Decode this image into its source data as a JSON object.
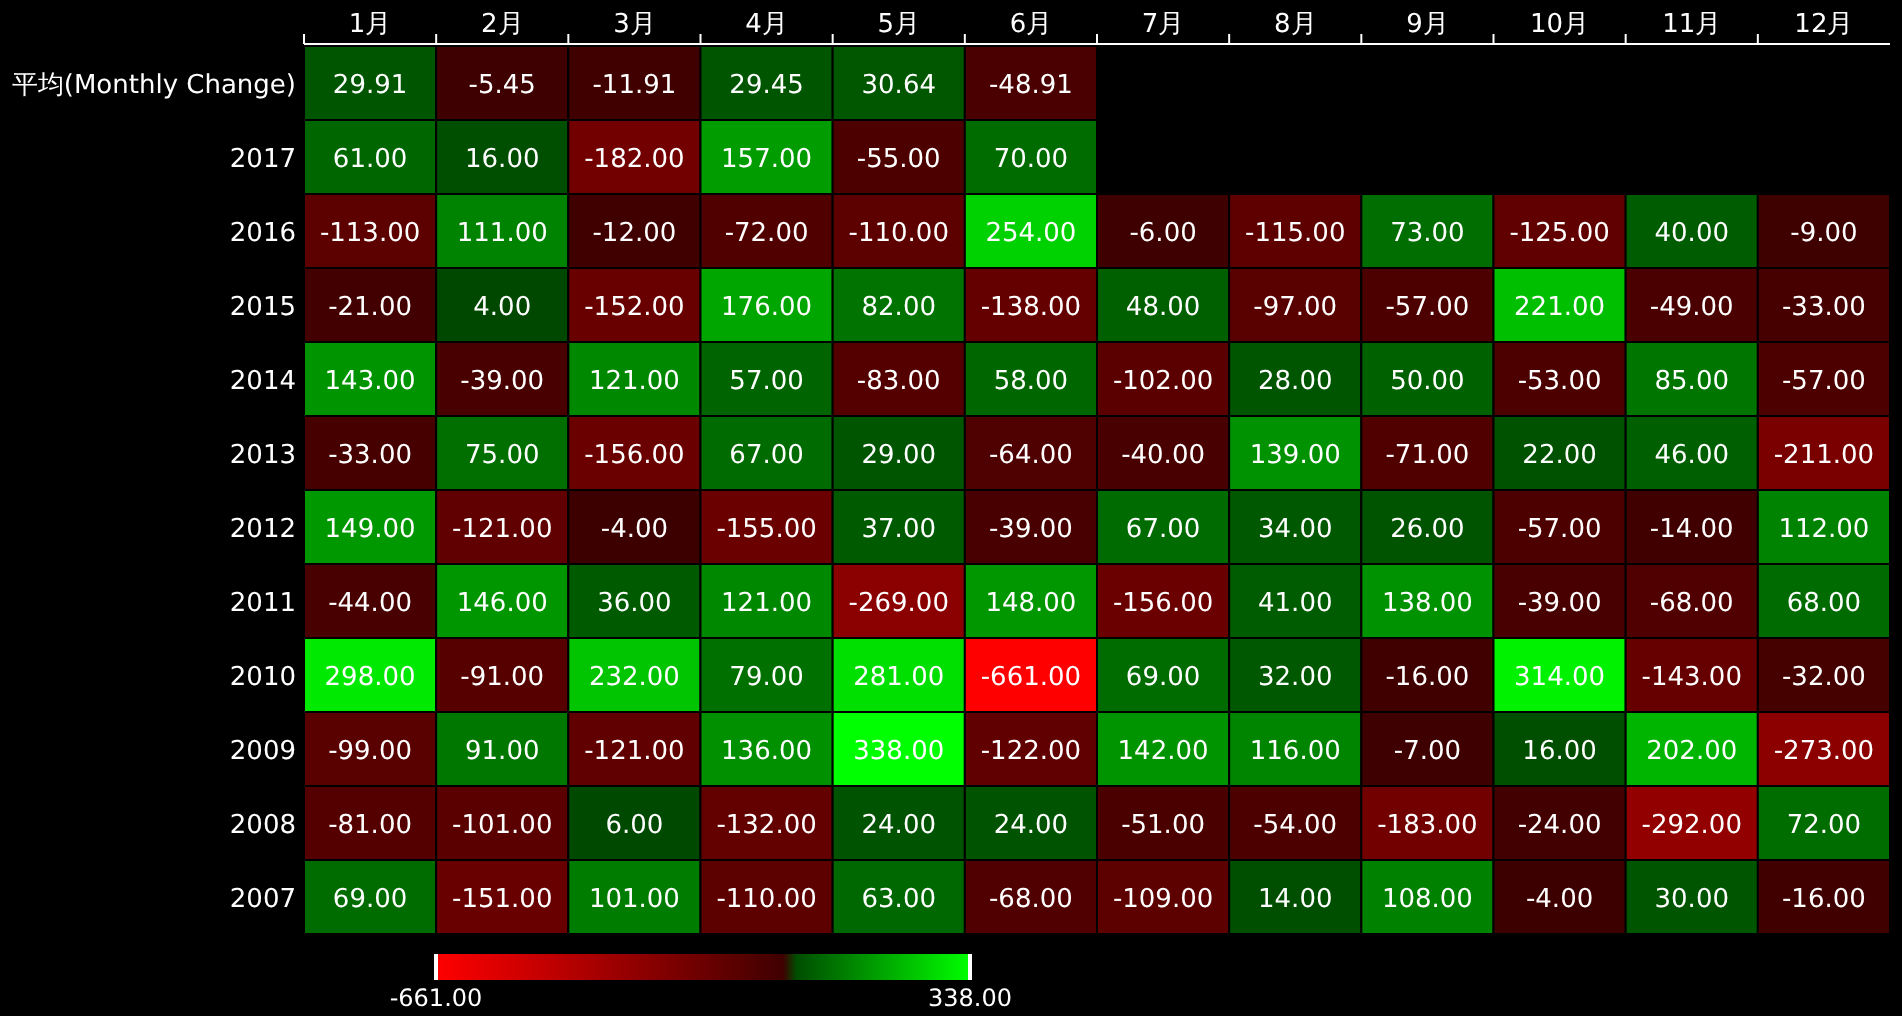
{
  "chart_data": {
    "type": "heatmap",
    "categories": [
      "1月",
      "2月",
      "3月",
      "4月",
      "5月",
      "6月",
      "7月",
      "8月",
      "9月",
      "10月",
      "11月",
      "12月"
    ],
    "y_categories": [
      "平均(Monthly Change)",
      "2017",
      "2016",
      "2015",
      "2014",
      "2013",
      "2012",
      "2011",
      "2010",
      "2009",
      "2008",
      "2007"
    ],
    "cells": [
      [
        29.91,
        -5.45,
        -11.91,
        29.45,
        30.64,
        -48.91,
        null,
        null,
        null,
        null,
        null,
        null
      ],
      [
        61,
        16,
        -182,
        157,
        -55,
        70,
        null,
        null,
        null,
        null,
        null,
        null
      ],
      [
        -113,
        111,
        -12,
        -72,
        -110,
        254,
        -6,
        -115,
        73,
        -125,
        40,
        -9
      ],
      [
        -21,
        4,
        -152,
        176,
        82,
        -138,
        48,
        -97,
        -57,
        221,
        -49,
        -33
      ],
      [
        143,
        -39,
        121,
        57,
        -83,
        58,
        -102,
        28,
        50,
        -53,
        85,
        -57
      ],
      [
        -33,
        75,
        -156,
        67,
        29,
        -64,
        -40,
        139,
        -71,
        22,
        46,
        -211
      ],
      [
        149,
        -121,
        -4,
        -155,
        37,
        -39,
        67,
        34,
        26,
        -57,
        -14,
        112
      ],
      [
        -44,
        146,
        36,
        121,
        -269,
        148,
        -156,
        41,
        138,
        -39,
        -68,
        68
      ],
      [
        298,
        -91,
        232,
        79,
        281,
        -661,
        69,
        32,
        -16,
        314,
        -143,
        -32
      ],
      [
        -99,
        91,
        -121,
        136,
        338,
        -122,
        142,
        116,
        -7,
        16,
        202,
        -273
      ],
      [
        -81,
        -101,
        6,
        -132,
        24,
        24,
        -51,
        -54,
        -183,
        -24,
        -292,
        72
      ],
      [
        69,
        -151,
        101,
        -110,
        63,
        -68,
        -109,
        14,
        108,
        -4,
        30,
        -16
      ]
    ],
    "cell_labels": [
      [
        "29.91",
        "-5.45",
        "-11.91",
        "29.45",
        "30.64",
        "-48.91",
        null,
        null,
        null,
        null,
        null,
        null
      ],
      [
        "61.00",
        "16.00",
        "-182.00",
        "157.00",
        "-55.00",
        "70.00",
        null,
        null,
        null,
        null,
        null,
        null
      ],
      [
        "-113.00",
        "111.00",
        "-12.00",
        "-72.00",
        "-110.00",
        "254.00",
        "-6.00",
        "-115.00",
        "73.00",
        "-125.00",
        "40.00",
        "-9.00"
      ],
      [
        "-21.00",
        "4.00",
        "-152.00",
        "176.00",
        "82.00",
        "-138.00",
        "48.00",
        "-97.00",
        "-57.00",
        "221.00",
        "-49.00",
        "-33.00"
      ],
      [
        "143.00",
        "-39.00",
        "121.00",
        "57.00",
        "-83.00",
        "58.00",
        "-102.00",
        "28.00",
        "50.00",
        "-53.00",
        "85.00",
        "-57.00"
      ],
      [
        "-33.00",
        "75.00",
        "-156.00",
        "67.00",
        "29.00",
        "-64.00",
        "-40.00",
        "139.00",
        "-71.00",
        "22.00",
        "46.00",
        "-211.00"
      ],
      [
        "149.00",
        "-121.00",
        "-4.00",
        "-155.00",
        "37.00",
        "-39.00",
        "67.00",
        "34.00",
        "26.00",
        "-57.00",
        "-14.00",
        "112.00"
      ],
      [
        "-44.00",
        "146.00",
        "36.00",
        "121.00",
        "-269.00",
        "148.00",
        "-156.00",
        "41.00",
        "138.00",
        "-39.00",
        "-68.00",
        "68.00"
      ],
      [
        "298.00",
        "-91.00",
        "232.00",
        "79.00",
        "281.00",
        "-661.00",
        "69.00",
        "32.00",
        "-16.00",
        "314.00",
        "-143.00",
        "-32.00"
      ],
      [
        "-99.00",
        "91.00",
        "-121.00",
        "136.00",
        "338.00",
        "-122.00",
        "142.00",
        "116.00",
        "-7.00",
        "16.00",
        "202.00",
        "-273.00"
      ],
      [
        "-81.00",
        "-101.00",
        "6.00",
        "-132.00",
        "24.00",
        "24.00",
        "-51.00",
        "-54.00",
        "-183.00",
        "-24.00",
        "-292.00",
        "72.00"
      ],
      [
        "69.00",
        "-151.00",
        "101.00",
        "-110.00",
        "63.00",
        "-68.00",
        "-109.00",
        "14.00",
        "108.00",
        "-4.00",
        "30.00",
        "-16.00"
      ]
    ],
    "clim": [
      -661,
      338
    ],
    "cticks": [
      {
        "value": -661,
        "label": "-661.00"
      },
      {
        "value": 338,
        "label": "338.00"
      }
    ]
  }
}
